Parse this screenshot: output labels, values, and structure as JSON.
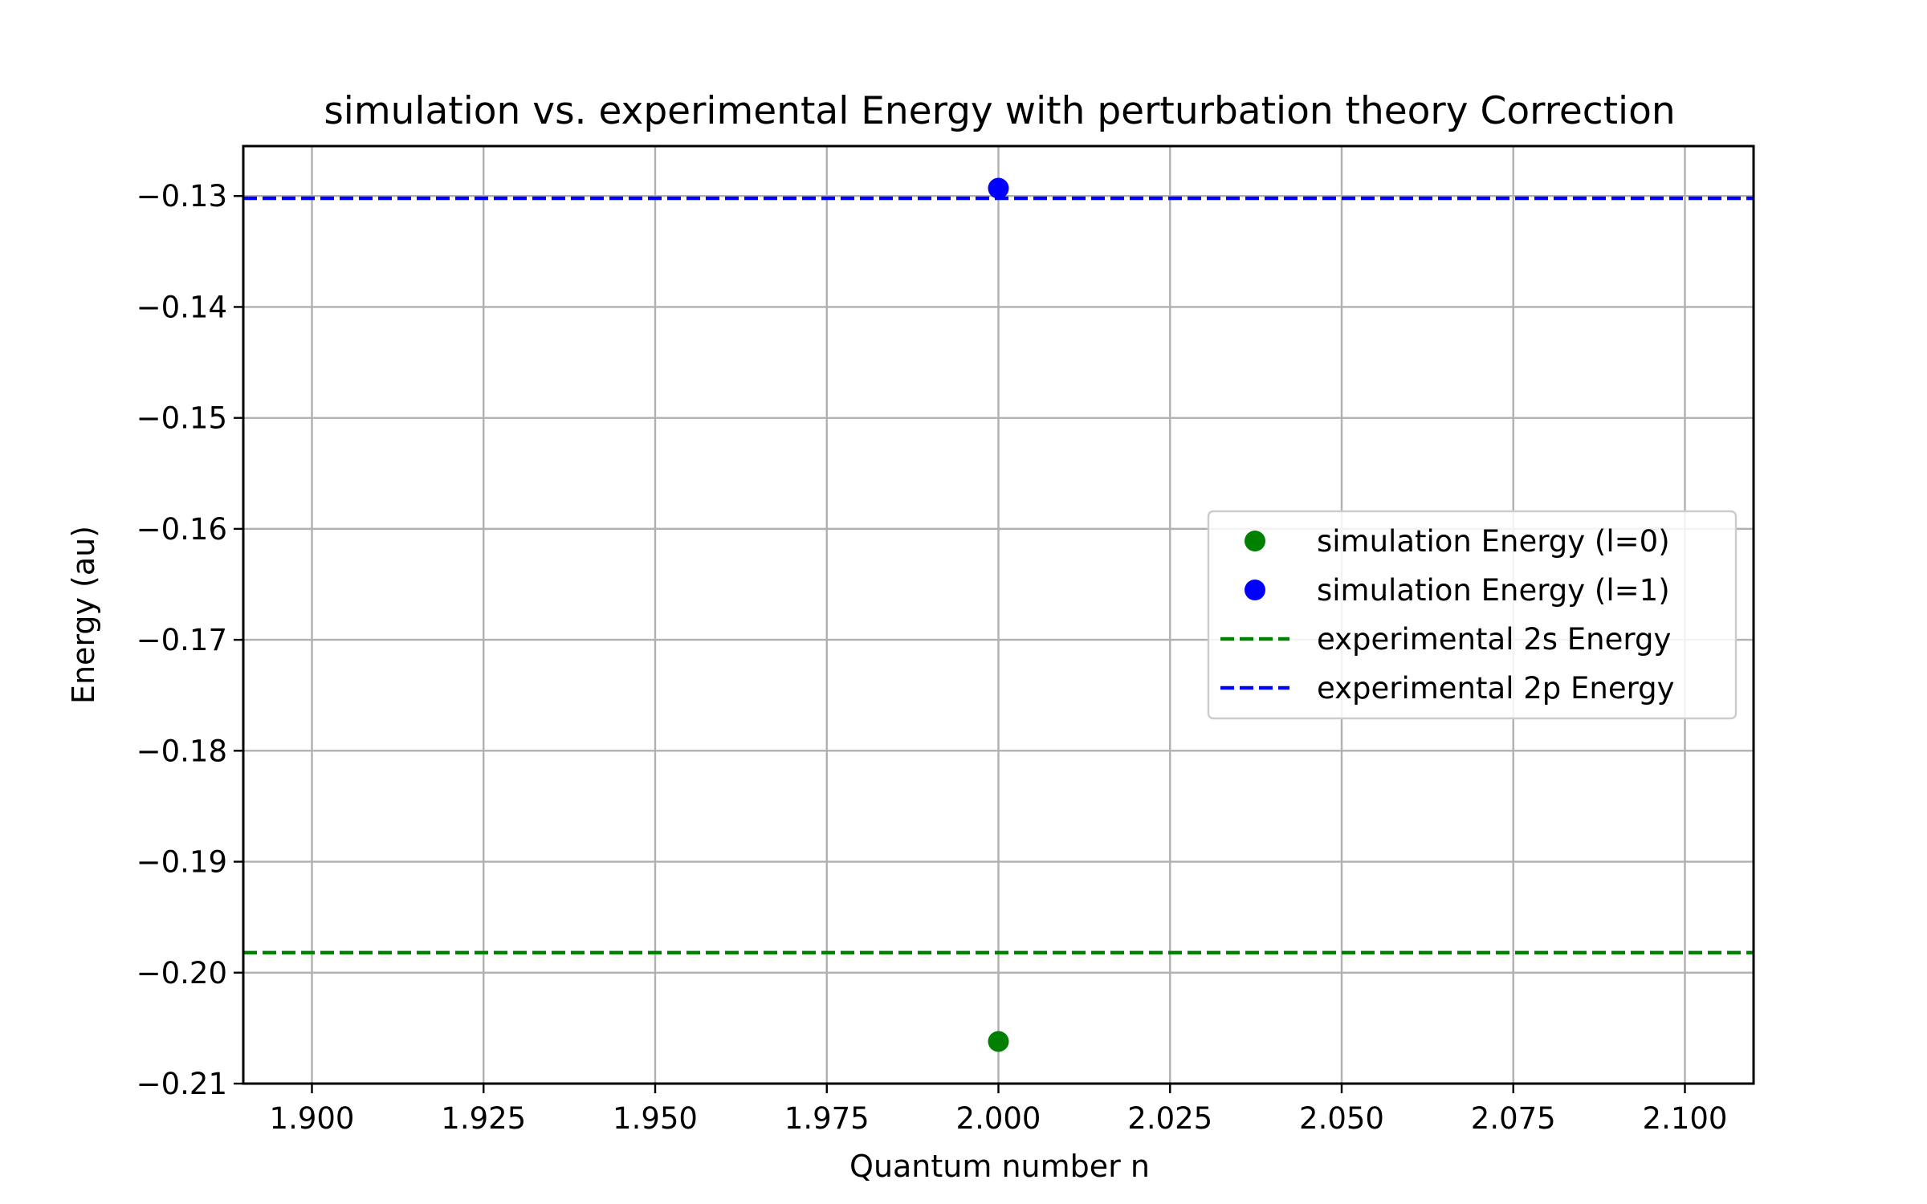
{
  "chart_data": {
    "type": "scatter",
    "title": "simulation vs. experimental Energy with perturbation theory Correction",
    "xlabel": "Quantum number n",
    "ylabel": "Energy (au)",
    "xlim": [
      1.89,
      2.11
    ],
    "ylim": [
      -0.21,
      -0.1255
    ],
    "xticks": [
      1.9,
      1.925,
      1.95,
      1.975,
      2.0,
      2.025,
      2.05,
      2.075,
      2.1
    ],
    "xtick_labels": [
      "1.900",
      "1.925",
      "1.950",
      "1.975",
      "2.000",
      "2.025",
      "2.050",
      "2.075",
      "2.100"
    ],
    "yticks": [
      -0.21,
      -0.2,
      -0.19,
      -0.18,
      -0.17,
      -0.16,
      -0.15,
      -0.14,
      -0.13
    ],
    "ytick_labels": [
      "−0.21",
      "−0.20",
      "−0.19",
      "−0.18",
      "−0.17",
      "−0.16",
      "−0.15",
      "−0.14",
      "−0.13"
    ],
    "grid": true,
    "legend_position": "center-right",
    "series": [
      {
        "name": "simulation Energy (l=0)",
        "kind": "scatter",
        "color": "#008000",
        "points": [
          {
            "x": 2.0,
            "y": -0.2062
          }
        ]
      },
      {
        "name": "simulation Energy (l=1)",
        "kind": "scatter",
        "color": "#0000ff",
        "points": [
          {
            "x": 2.0,
            "y": -0.1293
          }
        ]
      },
      {
        "name": "experimental 2s Energy",
        "kind": "hline",
        "color": "#008000",
        "y": -0.1982
      },
      {
        "name": "experimental 2p Energy",
        "kind": "hline",
        "color": "#0000ff",
        "y": -0.1302
      }
    ]
  }
}
